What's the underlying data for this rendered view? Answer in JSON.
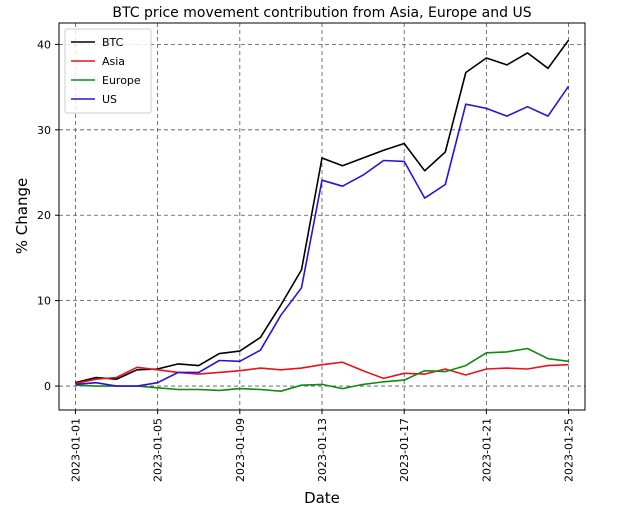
{
  "chart_data": {
    "type": "line",
    "title": "BTC price movement contribution from Asia, Europe and US",
    "xlabel": "Date",
    "ylabel": "% Change",
    "x": [
      "2023-01-01",
      "2023-01-02",
      "2023-01-03",
      "2023-01-04",
      "2023-01-05",
      "2023-01-06",
      "2023-01-07",
      "2023-01-08",
      "2023-01-09",
      "2023-01-10",
      "2023-01-11",
      "2023-01-12",
      "2023-01-13",
      "2023-01-14",
      "2023-01-15",
      "2023-01-16",
      "2023-01-17",
      "2023-01-18",
      "2023-01-19",
      "2023-01-20",
      "2023-01-21",
      "2023-01-22",
      "2023-01-23",
      "2023-01-24",
      "2023-01-25"
    ],
    "xticks": [
      "2023-01-01",
      "2023-01-05",
      "2023-01-09",
      "2023-01-13",
      "2023-01-17",
      "2023-01-21",
      "2023-01-25"
    ],
    "yticks": [
      0,
      10,
      20,
      30,
      40
    ],
    "ylim": [
      -2.8,
      42.5
    ],
    "grid": true,
    "legend_position": "top-left",
    "series": [
      {
        "name": "BTC",
        "color": "#000000",
        "values": [
          0.4,
          1.0,
          0.8,
          1.9,
          2.0,
          2.6,
          2.4,
          3.8,
          4.1,
          5.7,
          9.5,
          13.6,
          26.7,
          25.8,
          26.7,
          27.6,
          28.4,
          25.2,
          27.4,
          36.7,
          38.4,
          37.6,
          39.0,
          37.2,
          40.5
        ]
      },
      {
        "name": "Asia",
        "color": "#e8121b",
        "values": [
          0.3,
          0.8,
          1.0,
          2.2,
          1.9,
          1.6,
          1.4,
          1.6,
          1.8,
          2.1,
          1.9,
          2.1,
          2.5,
          2.8,
          1.8,
          0.9,
          1.5,
          1.4,
          2.0,
          1.3,
          2.0,
          2.1,
          2.0,
          2.4,
          2.5
        ]
      },
      {
        "name": "Europe",
        "color": "#0f8a0f",
        "values": [
          0.1,
          0.0,
          0.0,
          0.0,
          -0.2,
          -0.4,
          -0.4,
          -0.5,
          -0.3,
          -0.4,
          -0.6,
          0.1,
          0.2,
          -0.3,
          0.2,
          0.5,
          0.7,
          1.8,
          1.7,
          2.4,
          3.9,
          4.0,
          4.4,
          3.2,
          2.9
        ]
      },
      {
        "name": "US",
        "color": "#3010d8",
        "values": [
          0.2,
          0.4,
          0.0,
          0.0,
          0.4,
          1.6,
          1.6,
          3.0,
          2.9,
          4.2,
          8.3,
          11.5,
          24.1,
          23.4,
          24.7,
          26.4,
          26.3,
          22.0,
          23.6,
          33.0,
          32.5,
          31.6,
          32.7,
          31.6,
          35.1
        ]
      }
    ]
  }
}
